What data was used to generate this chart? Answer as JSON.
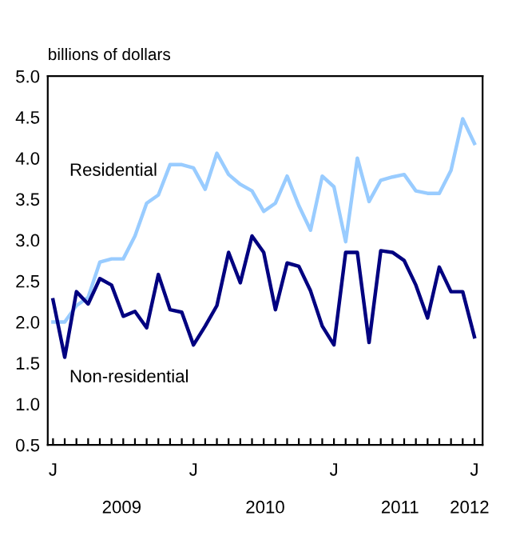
{
  "chart_data": {
    "type": "line",
    "ylabel": "billions of dollars",
    "categories": [
      "J",
      null,
      null,
      null,
      null,
      null,
      null,
      null,
      null,
      null,
      null,
      null,
      "J",
      null,
      null,
      null,
      null,
      null,
      null,
      null,
      null,
      null,
      null,
      null,
      "J",
      null,
      null,
      null,
      null,
      null,
      null,
      null,
      null,
      null,
      null,
      null,
      "J"
    ],
    "series": [
      {
        "name": "Residential",
        "color": "#99ccff",
        "values": [
          2.0,
          2.0,
          2.2,
          2.3,
          2.73,
          2.77,
          2.77,
          3.05,
          3.45,
          3.55,
          3.92,
          3.92,
          3.88,
          3.62,
          4.06,
          3.8,
          3.68,
          3.6,
          3.35,
          3.45,
          3.78,
          3.42,
          3.12,
          3.78,
          3.65,
          2.98,
          4.0,
          3.47,
          3.73,
          3.77,
          3.8,
          3.6,
          3.57,
          3.57,
          3.85,
          4.48,
          4.18
        ]
      },
      {
        "name": "Non-residential",
        "color": "#000080",
        "values": [
          2.27,
          1.57,
          2.37,
          2.22,
          2.53,
          2.45,
          2.07,
          2.13,
          1.93,
          2.58,
          2.15,
          2.12,
          1.72,
          1.95,
          2.2,
          2.85,
          2.48,
          3.05,
          2.85,
          2.15,
          2.72,
          2.68,
          2.38,
          1.95,
          1.72,
          2.85,
          2.85,
          1.75,
          2.87,
          2.85,
          2.75,
          2.45,
          2.05,
          2.67,
          2.37,
          2.37,
          1.82
        ]
      }
    ],
    "ylim": [
      0.5,
      5.0
    ],
    "yticks": [
      {
        "value": 0.5,
        "label": "0.5"
      },
      {
        "value": 1.0,
        "label": "1.0"
      },
      {
        "value": 1.5,
        "label": "1.5"
      },
      {
        "value": 2.0,
        "label": "2.0"
      },
      {
        "value": 2.5,
        "label": "2.5"
      },
      {
        "value": 3.0,
        "label": "3.0"
      },
      {
        "value": 3.5,
        "label": "3.5"
      },
      {
        "value": 4.0,
        "label": "4.0"
      },
      {
        "value": 4.5,
        "label": "4.5"
      },
      {
        "value": 5.0,
        "label": "5.0"
      }
    ],
    "annotations": [
      "2009",
      "2010",
      "2011",
      "2012"
    ],
    "grid": false,
    "legend": false,
    "marker": "none",
    "line_style": "solid"
  }
}
